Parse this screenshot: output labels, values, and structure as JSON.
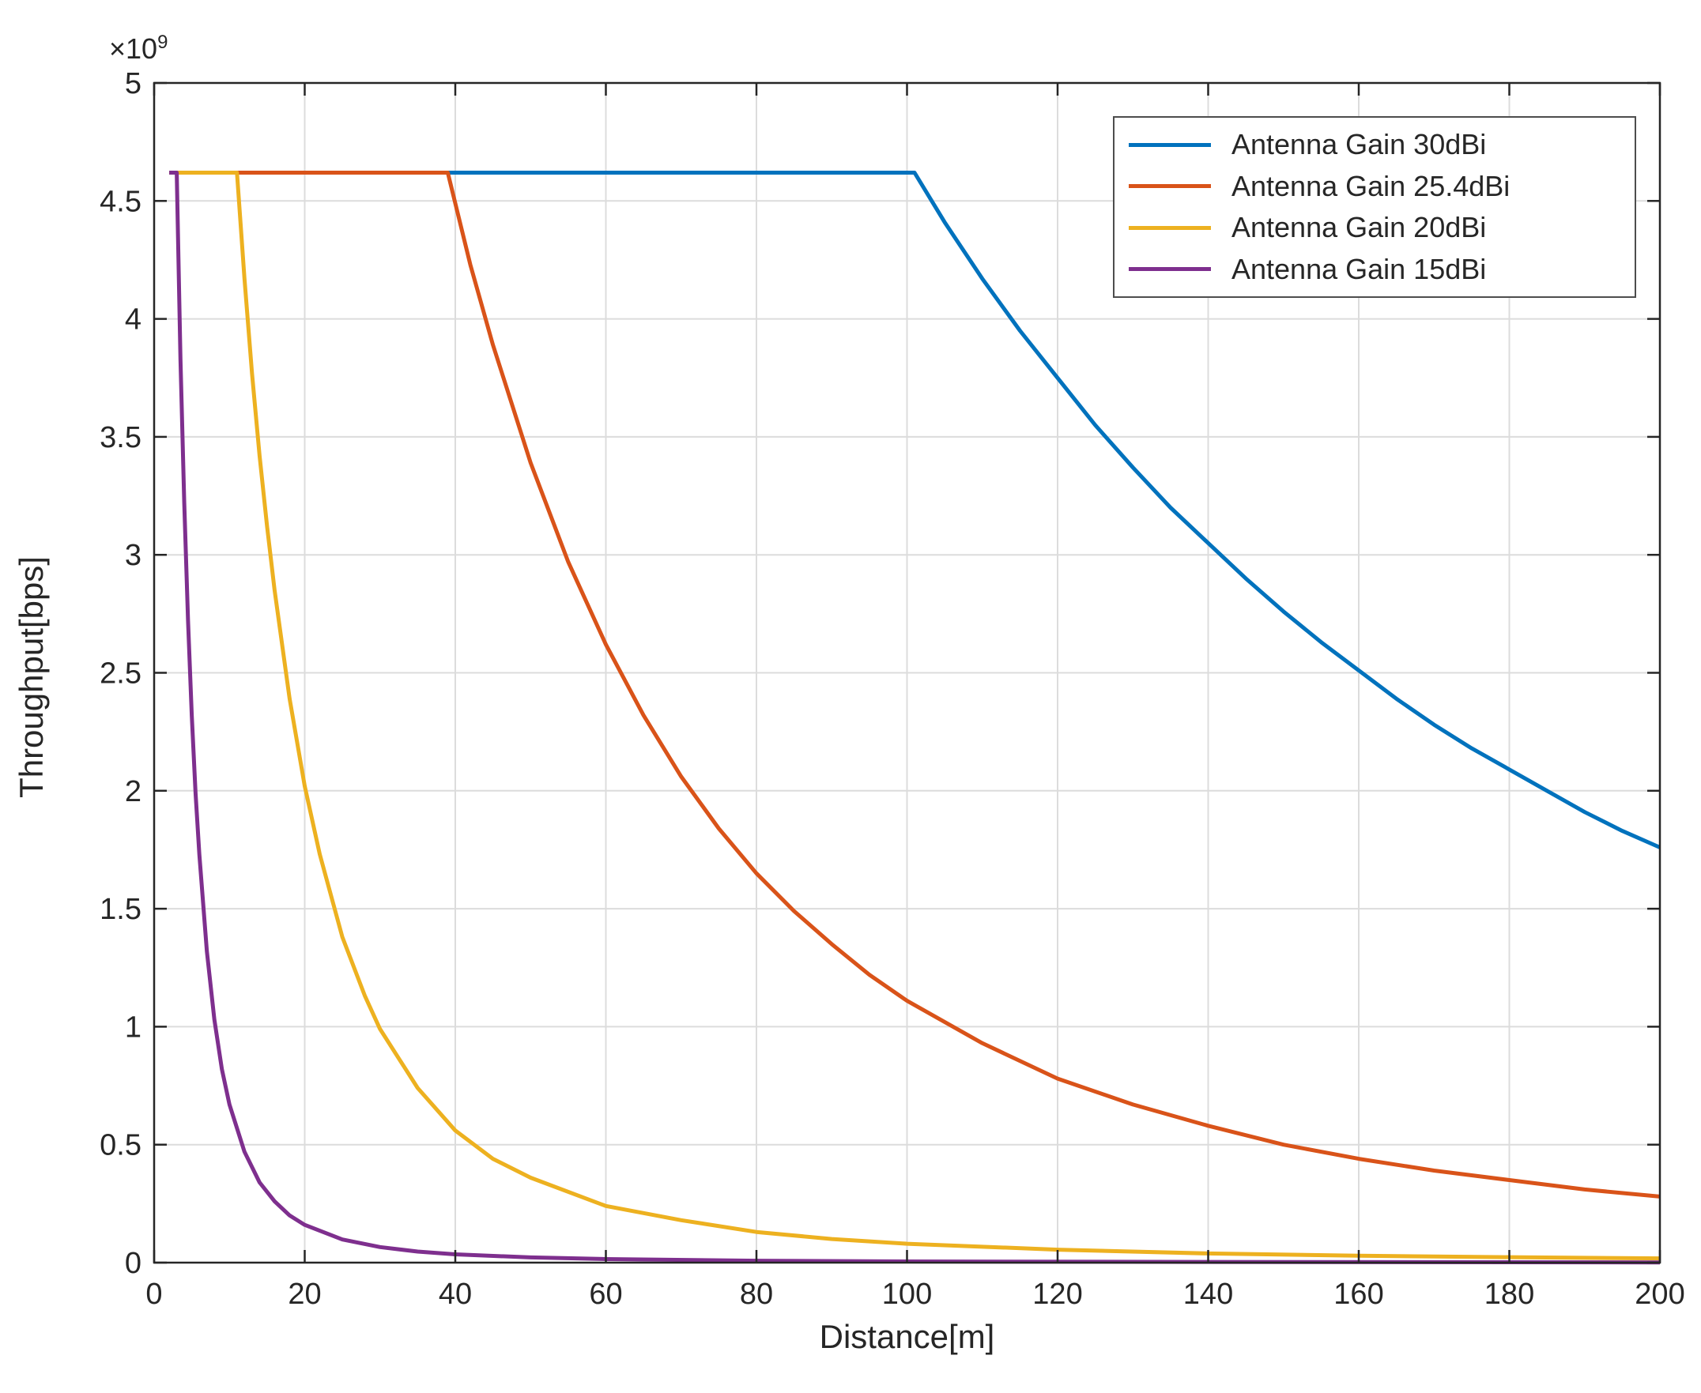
{
  "style": {
    "background": "#ffffff",
    "axis_color": "#262626",
    "grid_color": "#dcdcdc",
    "tick_label_color": "#262626"
  },
  "chart_data": {
    "type": "line",
    "xlabel": "Distance[m]",
    "ylabel": "Throughput[bps]",
    "y_axis_exponent": {
      "base": "×10",
      "exponent": "9"
    },
    "xlim": [
      0,
      200
    ],
    "ylim": [
      0,
      5
    ],
    "x_ticks": [
      0,
      20,
      40,
      60,
      80,
      100,
      120,
      140,
      160,
      180,
      200
    ],
    "x_tick_labels": [
      "0",
      "20",
      "40",
      "60",
      "80",
      "100",
      "120",
      "140",
      "160",
      "180",
      "200"
    ],
    "y_ticks": [
      0,
      0.5,
      1,
      1.5,
      2,
      2.5,
      3,
      3.5,
      4,
      4.5,
      5
    ],
    "y_tick_labels": [
      "0",
      "0.5",
      "1",
      "1.5",
      "2",
      "2.5",
      "3",
      "3.5",
      "4",
      "4.5",
      "5"
    ],
    "grid": true,
    "y_value_unit": "1e9 bps",
    "plateau_value_e9": 4.62,
    "legend_position": "top-right",
    "series": [
      {
        "name": "Antenna Gain 30dBi",
        "color": "#0072BD",
        "plateau_end_x": 101,
        "points": [
          [
            2,
            4.62
          ],
          [
            101,
            4.62
          ],
          [
            105,
            4.41
          ],
          [
            110,
            4.17
          ],
          [
            115,
            3.95
          ],
          [
            120,
            3.75
          ],
          [
            125,
            3.55
          ],
          [
            130,
            3.37
          ],
          [
            135,
            3.2
          ],
          [
            140,
            3.05
          ],
          [
            145,
            2.9
          ],
          [
            150,
            2.76
          ],
          [
            155,
            2.63
          ],
          [
            160,
            2.51
          ],
          [
            165,
            2.39
          ],
          [
            170,
            2.28
          ],
          [
            175,
            2.18
          ],
          [
            180,
            2.09
          ],
          [
            185,
            2.0
          ],
          [
            190,
            1.91
          ],
          [
            195,
            1.83
          ],
          [
            200,
            1.76
          ]
        ]
      },
      {
        "name": "Antenna Gain 25.4dBi",
        "color": "#D95319",
        "plateau_end_x": 39,
        "points": [
          [
            2,
            4.62
          ],
          [
            39,
            4.62
          ],
          [
            42,
            4.23
          ],
          [
            45,
            3.89
          ],
          [
            50,
            3.39
          ],
          [
            55,
            2.97
          ],
          [
            60,
            2.62
          ],
          [
            65,
            2.32
          ],
          [
            70,
            2.06
          ],
          [
            75,
            1.84
          ],
          [
            80,
            1.65
          ],
          [
            85,
            1.49
          ],
          [
            90,
            1.35
          ],
          [
            95,
            1.22
          ],
          [
            100,
            1.11
          ],
          [
            110,
            0.93
          ],
          [
            120,
            0.78
          ],
          [
            130,
            0.67
          ],
          [
            140,
            0.58
          ],
          [
            150,
            0.5
          ],
          [
            160,
            0.44
          ],
          [
            170,
            0.39
          ],
          [
            180,
            0.35
          ],
          [
            190,
            0.31
          ],
          [
            200,
            0.28
          ]
        ]
      },
      {
        "name": "Antenna Gain 20dBi",
        "color": "#EDB120",
        "plateau_end_x": 11,
        "points": [
          [
            2,
            4.62
          ],
          [
            11,
            4.62
          ],
          [
            12,
            4.17
          ],
          [
            13,
            3.77
          ],
          [
            14,
            3.42
          ],
          [
            15,
            3.12
          ],
          [
            16,
            2.85
          ],
          [
            18,
            2.39
          ],
          [
            20,
            2.02
          ],
          [
            22,
            1.73
          ],
          [
            25,
            1.38
          ],
          [
            28,
            1.13
          ],
          [
            30,
            0.99
          ],
          [
            35,
            0.74
          ],
          [
            40,
            0.56
          ],
          [
            45,
            0.44
          ],
          [
            50,
            0.36
          ],
          [
            60,
            0.24
          ],
          [
            70,
            0.18
          ],
          [
            80,
            0.13
          ],
          [
            90,
            0.1
          ],
          [
            100,
            0.08
          ],
          [
            120,
            0.055
          ],
          [
            140,
            0.039
          ],
          [
            160,
            0.029
          ],
          [
            180,
            0.023
          ],
          [
            200,
            0.018
          ]
        ]
      },
      {
        "name": "Antenna Gain 15dBi",
        "color": "#7E2F8E",
        "plateau_end_x": 3,
        "points": [
          [
            2,
            4.62
          ],
          [
            3,
            4.62
          ],
          [
            3.5,
            3.83
          ],
          [
            4,
            3.22
          ],
          [
            4.5,
            2.72
          ],
          [
            5,
            2.32
          ],
          [
            5.5,
            1.99
          ],
          [
            6,
            1.73
          ],
          [
            7,
            1.32
          ],
          [
            8,
            1.03
          ],
          [
            9,
            0.82
          ],
          [
            10,
            0.67
          ],
          [
            12,
            0.47
          ],
          [
            14,
            0.34
          ],
          [
            16,
            0.26
          ],
          [
            18,
            0.2
          ],
          [
            20,
            0.16
          ],
          [
            25,
            0.098
          ],
          [
            30,
            0.066
          ],
          [
            35,
            0.047
          ],
          [
            40,
            0.035
          ],
          [
            50,
            0.022
          ],
          [
            60,
            0.015
          ],
          [
            80,
            0.008
          ],
          [
            100,
            0.005
          ],
          [
            140,
            0.003
          ],
          [
            200,
            0.001
          ]
        ]
      }
    ]
  }
}
